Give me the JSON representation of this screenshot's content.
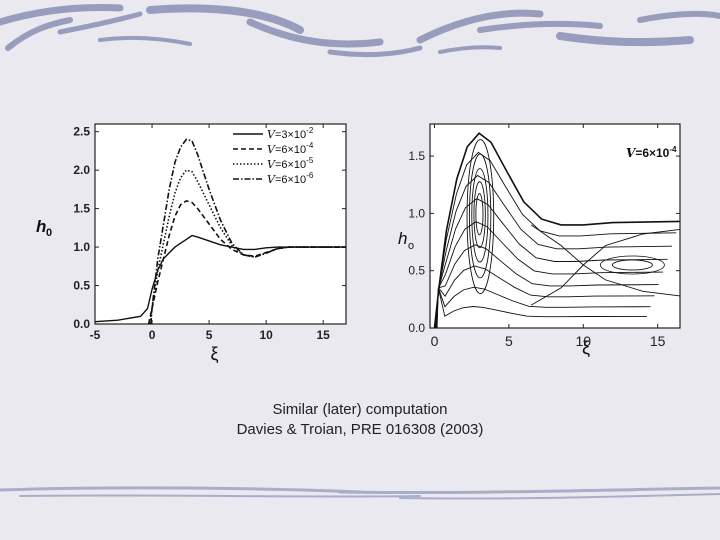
{
  "caption": {
    "line1": "Similar (later) computation",
    "line2": "Davies & Troian, PRE 016308 (2003)"
  },
  "colors": {
    "background": "#e9e9ef",
    "stroke_decor": "#8a8fb5",
    "curve": "#111111"
  },
  "chart_data": [
    {
      "type": "line",
      "xlabel": "ξ",
      "ylabel": "h",
      "ylabel_sub": "0",
      "xlim": [
        -5,
        17
      ],
      "ylim": [
        0,
        2.6
      ],
      "x_ticks": [
        "-5",
        "0",
        "5",
        "10",
        "15"
      ],
      "x_tick_values": [
        -5,
        0,
        5,
        10,
        15
      ],
      "y_ticks": [
        "0.0",
        "0.5",
        "1.0",
        "1.5",
        "2.0",
        "2.5"
      ],
      "y_tick_values": [
        0,
        0.5,
        1.0,
        1.5,
        2.0,
        2.5
      ],
      "legend_position": "top-right",
      "series": [
        {
          "name": "V=3x10-2",
          "legend_prefix": "V",
          "legend_mid": "=3",
          "legend_exp": "-2",
          "dash": "solid",
          "points": [
            [
              -5,
              0.03
            ],
            [
              -3,
              0.05
            ],
            [
              -1,
              0.1
            ],
            [
              -0.4,
              0.2
            ],
            [
              0,
              0.45
            ],
            [
              0.5,
              0.7
            ],
            [
              1,
              0.85
            ],
            [
              2,
              1.0
            ],
            [
              3,
              1.1
            ],
            [
              3.5,
              1.15
            ],
            [
              4,
              1.13
            ],
            [
              5,
              1.08
            ],
            [
              6,
              1.03
            ],
            [
              7,
              1.0
            ],
            [
              8,
              0.97
            ],
            [
              9,
              0.97
            ],
            [
              10,
              0.99
            ],
            [
              11,
              1.0
            ],
            [
              12,
              1.0
            ],
            [
              17,
              1.0
            ]
          ]
        },
        {
          "name": "V=6x10-4",
          "legend_prefix": "V",
          "legend_mid": "=6",
          "legend_exp": "-4",
          "dash": "dashed",
          "points": [
            [
              -0.3,
              0.0
            ],
            [
              0,
              0.2
            ],
            [
              0.5,
              0.55
            ],
            [
              1,
              0.85
            ],
            [
              1.5,
              1.15
            ],
            [
              2,
              1.4
            ],
            [
              2.5,
              1.55
            ],
            [
              3,
              1.6
            ],
            [
              3.5,
              1.58
            ],
            [
              4,
              1.5
            ],
            [
              5,
              1.3
            ],
            [
              6,
              1.1
            ],
            [
              7,
              0.97
            ],
            [
              8,
              0.9
            ],
            [
              9,
              0.88
            ],
            [
              10,
              0.93
            ],
            [
              11,
              0.98
            ],
            [
              12,
              1.0
            ],
            [
              17,
              1.0
            ]
          ]
        },
        {
          "name": "V=6x10-5",
          "legend_prefix": "V",
          "legend_mid": "=6",
          "legend_exp": "-5",
          "dash": "dotted",
          "points": [
            [
              -0.2,
              0.0
            ],
            [
              0,
              0.2
            ],
            [
              0.5,
              0.7
            ],
            [
              1,
              1.05
            ],
            [
              1.5,
              1.4
            ],
            [
              2,
              1.7
            ],
            [
              2.5,
              1.9
            ],
            [
              3,
              2.0
            ],
            [
              3.5,
              1.98
            ],
            [
              4,
              1.85
            ],
            [
              5,
              1.55
            ],
            [
              6,
              1.25
            ],
            [
              7,
              1.02
            ],
            [
              8,
              0.9
            ],
            [
              9,
              0.87
            ],
            [
              10,
              0.92
            ],
            [
              11,
              0.98
            ],
            [
              12,
              1.0
            ],
            [
              17,
              1.0
            ]
          ]
        },
        {
          "name": "V=6x10-6",
          "legend_prefix": "V",
          "legend_mid": "=6",
          "legend_exp": "-6",
          "dash": "dashdot",
          "points": [
            [
              -0.1,
              0.0
            ],
            [
              0,
              0.2
            ],
            [
              0.5,
              0.85
            ],
            [
              1,
              1.3
            ],
            [
              1.5,
              1.75
            ],
            [
              2,
              2.1
            ],
            [
              2.5,
              2.3
            ],
            [
              3,
              2.4
            ],
            [
              3.5,
              2.38
            ],
            [
              4,
              2.2
            ],
            [
              5,
              1.75
            ],
            [
              6,
              1.35
            ],
            [
              7,
              1.05
            ],
            [
              8,
              0.9
            ],
            [
              9,
              0.87
            ],
            [
              10,
              0.92
            ],
            [
              11,
              0.98
            ],
            [
              12,
              1.0
            ],
            [
              17,
              1.0
            ]
          ]
        }
      ]
    },
    {
      "type": "line",
      "xlabel": "ξ",
      "ylabel": "h",
      "ylabel_sub": "o",
      "xlim": [
        -0.3,
        16.5
      ],
      "ylim": [
        0,
        1.78
      ],
      "x_ticks": [
        "0",
        "5",
        "10",
        "15"
      ],
      "x_tick_values": [
        0,
        5,
        10,
        15
      ],
      "y_ticks": [
        "0.0",
        "0.5",
        "1.0",
        "1.5"
      ],
      "y_tick_values": [
        0,
        0.5,
        1.0,
        1.5
      ],
      "annotation": {
        "prefix": "V",
        "mid": "=6",
        "exp": "-4"
      },
      "outer_curve_peak": 1.7,
      "streamline_levels": [
        0.9,
        0.78,
        0.66,
        0.54,
        0.42,
        0.31,
        0.2,
        0.1
      ],
      "vortex_center": [
        3.0,
        1.0
      ],
      "vortex_rings": [
        0.15,
        0.24,
        0.34,
        0.45,
        0.56
      ],
      "right_eddy_center": [
        13.3,
        0.55
      ]
    }
  ]
}
